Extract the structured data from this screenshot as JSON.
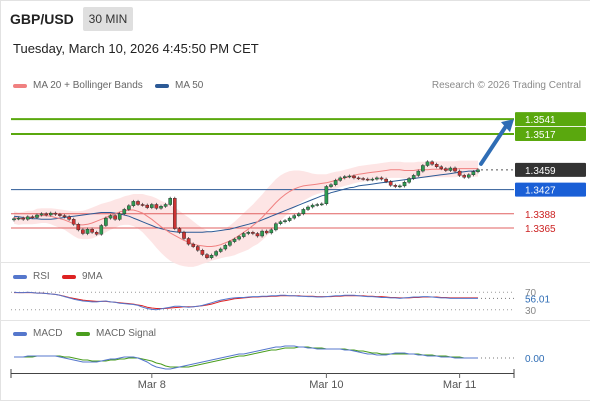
{
  "header": {
    "symbol": "GBP/USD",
    "interval": "30 MIN",
    "datetime": "Tuesday, March 10, 2026 4:45:50 PM CET",
    "credit": "Research © 2026 Trading Central"
  },
  "colors": {
    "ma20": "#f08080",
    "ma50": "#2c5a96",
    "bollinger_fill": "#fde0e0",
    "bullish_level": "#5aa80e",
    "support_line": "#2c5a96",
    "resistance_line": "#e06060",
    "candle_up": "#2e9a52",
    "candle_down": "#cc3333",
    "arrow": "#2f6db5",
    "rsi": "#5577cc",
    "rsi_ma": "#dd2222",
    "macd": "#5577cc",
    "macd_signal": "#4a9e1e"
  },
  "chart_data": [
    {
      "type": "candlestick",
      "legend": [
        {
          "label": "MA 20 + Bollinger Bands",
          "color": "#f08080"
        },
        {
          "label": "MA 50",
          "color": "#2c5a96"
        }
      ],
      "price_range": [
        1.331,
        1.358
      ],
      "levels": [
        {
          "value": 1.3541,
          "label": "1.3541",
          "style": "green"
        },
        {
          "value": 1.3517,
          "label": "1.3517",
          "style": "green"
        },
        {
          "value": 1.3459,
          "label": "1.3459",
          "style": "last"
        },
        {
          "value": 1.3427,
          "label": "1.3427",
          "style": "blue"
        },
        {
          "value": 1.3388,
          "label": "1.3388",
          "style": "red"
        },
        {
          "value": 1.3365,
          "label": "1.3365",
          "style": "red"
        }
      ],
      "x_ticks": [
        "Mar 8",
        "Mar 10",
        "Mar 11"
      ],
      "close": [
        1.338,
        1.3381,
        1.3379,
        1.3383,
        1.3382,
        1.3386,
        1.3388,
        1.3386,
        1.3389,
        1.3387,
        1.3385,
        1.3383,
        1.3379,
        1.3371,
        1.3362,
        1.3356,
        1.3363,
        1.3358,
        1.3355,
        1.3369,
        1.3381,
        1.3385,
        1.3379,
        1.3388,
        1.3395,
        1.3401,
        1.3408,
        1.3403,
        1.3402,
        1.3398,
        1.3403,
        1.3397,
        1.34,
        1.3403,
        1.3413,
        1.3364,
        1.3358,
        1.3348,
        1.3339,
        1.3335,
        1.3329,
        1.3322,
        1.3317,
        1.3321,
        1.3327,
        1.3331,
        1.3337,
        1.3343,
        1.3347,
        1.3351,
        1.3356,
        1.3358,
        1.3356,
        1.3352,
        1.336,
        1.3357,
        1.3362,
        1.3372,
        1.3375,
        1.3377,
        1.3381,
        1.3385,
        1.3388,
        1.3395,
        1.3399,
        1.3402,
        1.3403,
        1.3404,
        1.3432,
        1.3435,
        1.3442,
        1.3446,
        1.3448,
        1.3449,
        1.3446,
        1.3445,
        1.3444,
        1.3443,
        1.3444,
        1.3446,
        1.3444,
        1.344,
        1.3434,
        1.3432,
        1.3433,
        1.3439,
        1.3445,
        1.345,
        1.3457,
        1.3466,
        1.3472,
        1.3468,
        1.3464,
        1.3461,
        1.3458,
        1.3462,
        1.3457,
        1.345,
        1.3447,
        1.3451,
        1.3456,
        1.3459
      ],
      "ma20": [
        1.3382,
        1.338,
        1.3381,
        1.3382,
        1.3382,
        1.3384,
        1.3385,
        1.3385,
        1.3384,
        1.3382,
        1.338,
        1.3378,
        1.3375,
        1.3372,
        1.337,
        1.337,
        1.3371,
        1.3373,
        1.3376,
        1.3379,
        1.3382,
        1.3385,
        1.3388,
        1.3391,
        1.3393,
        1.3394,
        1.3394,
        1.3392,
        1.3389,
        1.3384,
        1.3379,
        1.3373,
        1.3367,
        1.3362,
        1.3357,
        1.3353,
        1.3349,
        1.3345,
        1.3342,
        1.3339,
        1.3337,
        1.3336,
        1.3335,
        1.3335,
        1.3336,
        1.3338,
        1.3341,
        1.3344,
        1.3348,
        1.3353,
        1.3358,
        1.3363,
        1.3369,
        1.3375,
        1.3382,
        1.339,
        1.3398,
        1.3406,
        1.3413,
        1.3419,
        1.3424,
        1.3428,
        1.3431,
        1.3433,
        1.3434,
        1.3435,
        1.3436,
        1.3437,
        1.3438,
        1.344,
        1.3442,
        1.3444,
        1.3446,
        1.3448,
        1.345,
        1.3452,
        1.3453,
        1.3454,
        1.3455,
        1.3456,
        1.3457,
        1.3458,
        1.3459,
        1.3459,
        1.3459,
        1.3458,
        1.3458,
        1.3458,
        1.3459,
        1.3459,
        1.3459,
        1.346,
        1.346,
        1.346,
        1.346,
        1.346,
        1.346,
        1.3461,
        1.3461,
        1.3461,
        1.3461,
        1.3461
      ],
      "ma50": [
        1.3384,
        1.3383,
        1.3382,
        1.3381,
        1.338,
        1.338,
        1.3379,
        1.3379,
        1.3379,
        1.338,
        1.3381,
        1.3382,
        1.3383,
        1.3384,
        1.3385,
        1.3386,
        1.3387,
        1.3388,
        1.3389,
        1.339,
        1.339,
        1.339,
        1.3389,
        1.3388,
        1.3386,
        1.3384,
        1.3381,
        1.3378,
        1.3375,
        1.3372,
        1.3369,
        1.3366,
        1.3364,
        1.3362,
        1.336,
        1.3359,
        1.3358,
        1.3358,
        1.3358,
        1.3358,
        1.3358,
        1.3358,
        1.3359,
        1.3359,
        1.336,
        1.3361,
        1.3362,
        1.3363,
        1.3365,
        1.3367,
        1.3369,
        1.3371,
        1.3373,
        1.3375,
        1.3378,
        1.3381,
        1.3384,
        1.3387,
        1.339,
        1.3393,
        1.3396,
        1.3399,
        1.3402,
        1.3405,
        1.3408,
        1.3411,
        1.3414,
        1.3417,
        1.3419,
        1.3422,
        1.3424,
        1.3426,
        1.3428,
        1.343,
        1.3431,
        1.3433,
        1.3434,
        1.3435,
        1.3436,
        1.3437,
        1.3438,
        1.3439,
        1.344,
        1.3441,
        1.3442,
        1.3443,
        1.3444,
        1.3445,
        1.3446,
        1.3447,
        1.3448,
        1.3449,
        1.345,
        1.3451,
        1.3452,
        1.3453,
        1.3454,
        1.3455,
        1.3456,
        1.3457,
        1.3457,
        1.3458
      ],
      "bollinger_width": [
        0.001,
        0.001,
        0.001,
        0.0011,
        0.0011,
        0.0012,
        0.0012,
        0.0012,
        0.0013,
        0.0014,
        0.0015,
        0.0016,
        0.0018,
        0.002,
        0.0022,
        0.0023,
        0.0024,
        0.0025,
        0.0025,
        0.0025,
        0.0024,
        0.0023,
        0.0023,
        0.0022,
        0.0023,
        0.0024,
        0.0026,
        0.0028,
        0.0031,
        0.0034,
        0.0037,
        0.004,
        0.0042,
        0.0044,
        0.0045,
        0.0045,
        0.0044,
        0.0042,
        0.004,
        0.0037,
        0.0033,
        0.0029,
        0.0026,
        0.0023,
        0.0022,
        0.0022,
        0.0023,
        0.0025,
        0.0027,
        0.0029,
        0.0031,
        0.0033,
        0.0034,
        0.0036,
        0.0037,
        0.0038,
        0.0038,
        0.0038,
        0.0037,
        0.0035,
        0.0033,
        0.003,
        0.0027,
        0.0024,
        0.0021,
        0.0018,
        0.0016,
        0.0015,
        0.0014,
        0.0014,
        0.0014,
        0.0013,
        0.0013,
        0.0013,
        0.0013,
        0.0013,
        0.0013,
        0.0013,
        0.0013,
        0.0013,
        0.0013,
        0.0013,
        0.0013,
        0.0013,
        0.0013,
        0.0013,
        0.0013,
        0.0013,
        0.0013,
        0.0013,
        0.0013,
        0.0013,
        0.0013,
        0.0013,
        0.0013,
        0.0013,
        0.0013,
        0.0013,
        0.0013,
        0.0013,
        0.0013,
        0.0013
      ]
    },
    {
      "type": "line",
      "legend": [
        {
          "label": "RSI",
          "color": "#5577cc"
        },
        {
          "label": "9MA",
          "color": "#dd2222"
        }
      ],
      "ylim": [
        25,
        75
      ],
      "y_ticks": [
        "70",
        "30"
      ],
      "last_value": "56.01",
      "rsi": [
        70,
        69,
        69,
        70,
        69,
        68,
        68,
        67,
        66,
        65,
        63,
        60,
        57,
        54,
        52,
        50,
        49,
        48,
        48,
        49,
        50,
        48,
        47,
        45,
        44,
        43,
        42,
        40,
        36,
        33,
        31,
        30,
        32,
        34,
        36,
        38,
        38,
        37,
        36,
        37,
        38,
        40,
        43,
        46,
        49,
        52,
        54,
        56,
        57,
        58,
        58,
        59,
        60,
        60,
        61,
        61,
        62,
        62,
        63,
        63,
        62,
        62,
        61,
        61,
        60,
        60,
        59,
        59,
        60,
        61,
        62,
        62,
        63,
        63,
        63,
        62,
        61,
        60,
        60,
        59,
        58,
        58,
        57,
        57,
        56,
        57,
        58,
        59,
        59,
        60,
        60,
        59,
        58,
        57,
        57,
        56,
        56,
        56,
        56,
        56,
        56,
        56
      ],
      "ma9": [
        69,
        69,
        69,
        69,
        69,
        68,
        68,
        67,
        66,
        65,
        63,
        61,
        58,
        56,
        54,
        52,
        51,
        50,
        49,
        49,
        49,
        48,
        47,
        46,
        45,
        44,
        43,
        41,
        39,
        36,
        34,
        33,
        33,
        33,
        34,
        35,
        36,
        37,
        37,
        37,
        38,
        39,
        41,
        43,
        46,
        49,
        51,
        53,
        55,
        56,
        57,
        58,
        59,
        59,
        60,
        60,
        61,
        61,
        62,
        62,
        62,
        62,
        62,
        61,
        61,
        61,
        60,
        60,
        60,
        60,
        61,
        61,
        62,
        62,
        62,
        62,
        62,
        61,
        61,
        60,
        60,
        59,
        58,
        58,
        57,
        57,
        57,
        58,
        58,
        59,
        59,
        59,
        59,
        58,
        58,
        57,
        57,
        57,
        57,
        57,
        57,
        57
      ]
    },
    {
      "type": "line",
      "legend": [
        {
          "label": "MACD",
          "color": "#5577cc"
        },
        {
          "label": "MACD Signal",
          "color": "#4a9e1e"
        }
      ],
      "ylim": [
        -0.0014,
        0.0018
      ],
      "last_value": "0.00",
      "macd": [
        0.0001,
        0.0001,
        0.0001,
        0.0002,
        0.0002,
        0.0002,
        0.0002,
        0.0002,
        0.0002,
        0.0002,
        0.0001,
        0.0,
        -0.0001,
        -0.0002,
        -0.0003,
        -0.0004,
        -0.0004,
        -0.0004,
        -0.0004,
        -0.0003,
        -0.0002,
        -0.0001,
        -0.0001,
        0.0,
        0.0001,
        0.0001,
        0.0001,
        0.0,
        -0.0002,
        -0.0004,
        -0.0007,
        -0.0009,
        -0.001,
        -0.0011,
        -0.0011,
        -0.001,
        -0.0009,
        -0.0008,
        -0.0007,
        -0.0006,
        -0.0005,
        -0.0004,
        -0.0003,
        -0.0002,
        -0.0001,
        0.0,
        0.0001,
        0.0002,
        0.0003,
        0.0004,
        0.0004,
        0.0005,
        0.0006,
        0.0007,
        0.0008,
        0.0009,
        0.001,
        0.0011,
        0.0011,
        0.0012,
        0.0012,
        0.0012,
        0.0011,
        0.0011,
        0.001,
        0.001,
        0.0009,
        0.0009,
        0.0009,
        0.0009,
        0.0009,
        0.0009,
        0.0008,
        0.0008,
        0.0007,
        0.0006,
        0.0005,
        0.0004,
        0.0004,
        0.0003,
        0.0003,
        0.0003,
        0.0004,
        0.0005,
        0.0005,
        0.0005,
        0.0004,
        0.0004,
        0.0003,
        0.0003,
        0.0002,
        0.0002,
        0.0002,
        0.0001,
        0.0001,
        0.0001,
        0.0,
        0.0,
        0.0,
        0.0,
        0.0,
        0.0
      ],
      "signal": [
        0.0001,
        0.0001,
        0.0001,
        0.0001,
        0.0001,
        0.0002,
        0.0002,
        0.0002,
        0.0002,
        0.0002,
        0.0002,
        0.0001,
        0.0001,
        0.0,
        -0.0001,
        -0.0002,
        -0.0002,
        -0.0003,
        -0.0003,
        -0.0003,
        -0.0003,
        -0.0002,
        -0.0002,
        -0.0001,
        -0.0001,
        0.0,
        0.0,
        0.0,
        -0.0001,
        -0.0002,
        -0.0003,
        -0.0005,
        -0.0006,
        -0.0008,
        -0.0009,
        -0.0009,
        -0.0009,
        -0.0009,
        -0.0009,
        -0.0008,
        -0.0007,
        -0.0006,
        -0.0005,
        -0.0004,
        -0.0003,
        -0.0002,
        -0.0001,
        0.0,
        0.0001,
        0.0002,
        0.0002,
        0.0003,
        0.0004,
        0.0005,
        0.0006,
        0.0007,
        0.0008,
        0.0008,
        0.0009,
        0.001,
        0.001,
        0.001,
        0.0011,
        0.0011,
        0.0011,
        0.001,
        0.001,
        0.001,
        0.0009,
        0.0009,
        0.0009,
        0.0009,
        0.0009,
        0.0008,
        0.0008,
        0.0007,
        0.0007,
        0.0006,
        0.0005,
        0.0005,
        0.0004,
        0.0004,
        0.0004,
        0.0004,
        0.0004,
        0.0004,
        0.0004,
        0.0004,
        0.0004,
        0.0003,
        0.0003,
        0.0003,
        0.0002,
        0.0002,
        0.0002,
        0.0001,
        0.0001,
        0.0001,
        0.0,
        0.0,
        0.0,
        0.0
      ]
    }
  ]
}
